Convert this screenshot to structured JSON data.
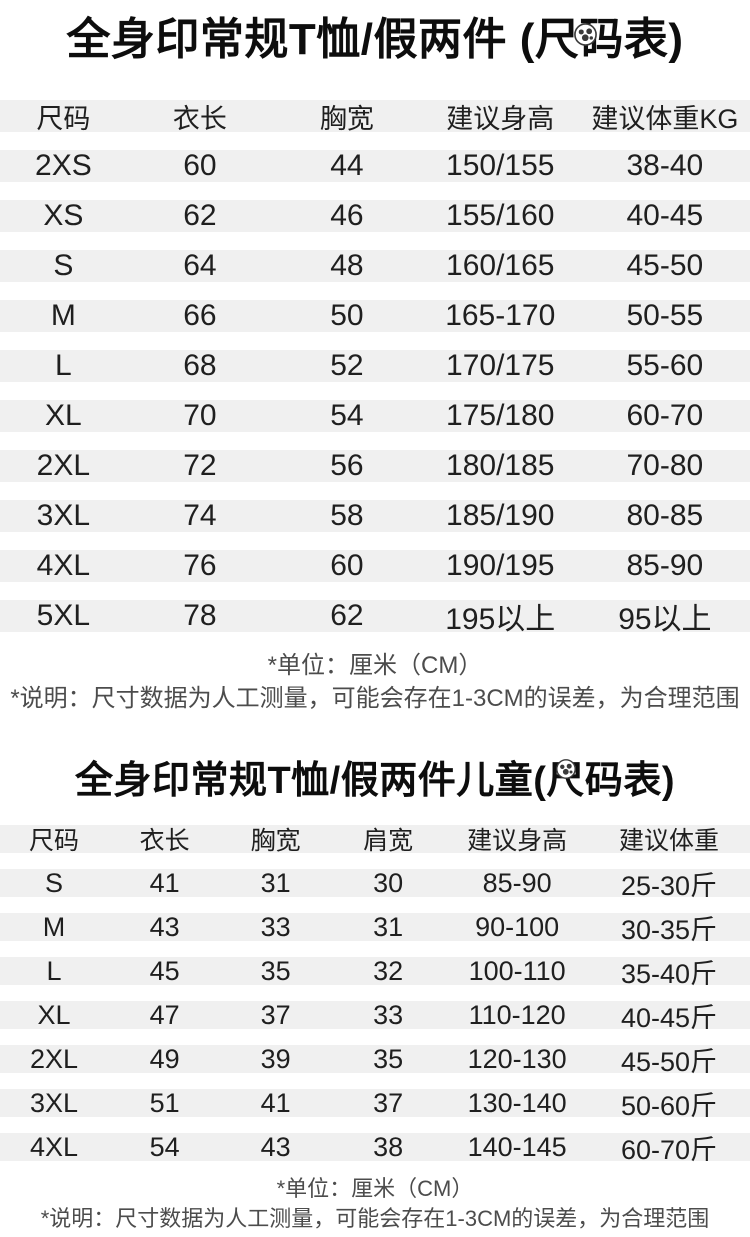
{
  "colors": {
    "row_band": "#f0f0f0",
    "title_text": "#0d0d0d",
    "table_text": "#1f1f1f",
    "note_text": "#4c4c4c",
    "background": "#ffffff"
  },
  "watermark_icon": "panda-logo-badge",
  "chart_data": [
    {
      "type": "table",
      "title": "全身印常规T恤/假两件 (尺码表)",
      "columns": [
        "尺码",
        "衣长",
        "胸宽",
        "建议身高",
        "建议体重KG"
      ],
      "rows": [
        [
          "2XS",
          "60",
          "44",
          "150/155",
          "38-40"
        ],
        [
          "XS",
          "62",
          "46",
          "155/160",
          "40-45"
        ],
        [
          "S",
          "64",
          "48",
          "160/165",
          "45-50"
        ],
        [
          "M",
          "66",
          "50",
          "165-170",
          "50-55"
        ],
        [
          "L",
          "68",
          "52",
          "170/175",
          "55-60"
        ],
        [
          "XL",
          "70",
          "54",
          "175/180",
          "60-70"
        ],
        [
          "2XL",
          "72",
          "56",
          "180/185",
          "70-80"
        ],
        [
          "3XL",
          "74",
          "58",
          "185/190",
          "80-85"
        ],
        [
          "4XL",
          "76",
          "60",
          "190/195",
          "85-90"
        ],
        [
          "5XL",
          "78",
          "62",
          "195以上",
          "95以上"
        ]
      ],
      "unit_note": "*单位：厘米（CM）",
      "disclaimer": "*说明：尺寸数据为人工测量，可能会存在1-3CM的误差，为合理范围"
    },
    {
      "type": "table",
      "title": "全身印常规T恤/假两件儿童(尺码表)",
      "columns": [
        "尺码",
        "衣长",
        "胸宽",
        "肩宽",
        "建议身高",
        "建议体重"
      ],
      "rows": [
        [
          "S",
          "41",
          "31",
          "30",
          "85-90",
          "25-30斤"
        ],
        [
          "M",
          "43",
          "33",
          "31",
          "90-100",
          "30-35斤"
        ],
        [
          "L",
          "45",
          "35",
          "32",
          "100-110",
          "35-40斤"
        ],
        [
          "XL",
          "47",
          "37",
          "33",
          "110-120",
          "40-45斤"
        ],
        [
          "2XL",
          "49",
          "39",
          "35",
          "120-130",
          "45-50斤"
        ],
        [
          "3XL",
          "51",
          "41",
          "37",
          "130-140",
          "50-60斤"
        ],
        [
          "4XL",
          "54",
          "43",
          "38",
          "140-145",
          "60-70斤"
        ]
      ],
      "unit_note": "*单位：厘米（CM）",
      "disclaimer": "*说明：尺寸数据为人工测量，可能会存在1-3CM的误差，为合理范围"
    }
  ]
}
